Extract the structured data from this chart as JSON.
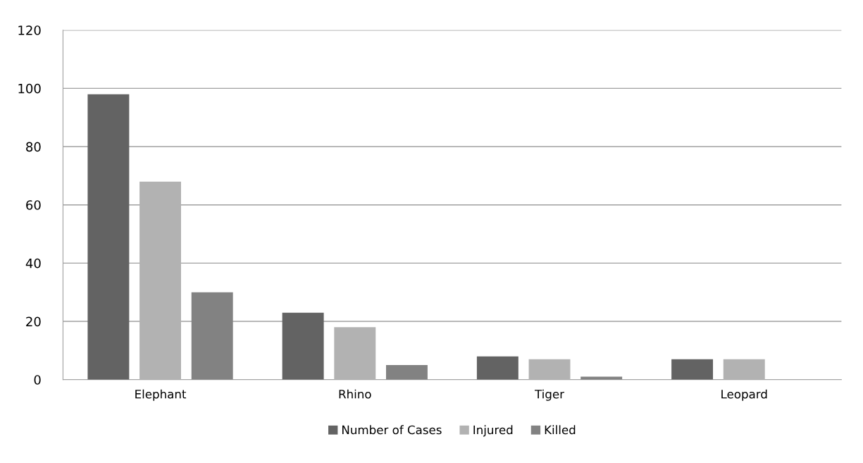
{
  "chart_data": {
    "type": "bar",
    "categories": [
      "Elephant",
      "Rhino",
      "Tiger",
      "Leopard"
    ],
    "series": [
      {
        "name": "Number of Cases",
        "color": "#636363",
        "values": [
          98,
          23,
          8,
          7
        ]
      },
      {
        "name": "Injured",
        "color": "#b2b2b2",
        "values": [
          68,
          18,
          7,
          7
        ]
      },
      {
        "name": "Killed",
        "color": "#828282",
        "values": [
          30,
          5,
          1,
          0
        ]
      }
    ],
    "ylim": [
      0,
      120
    ],
    "yticks": [
      0,
      20,
      40,
      60,
      80,
      100,
      120
    ],
    "grid": "y",
    "legend": "bottom"
  }
}
